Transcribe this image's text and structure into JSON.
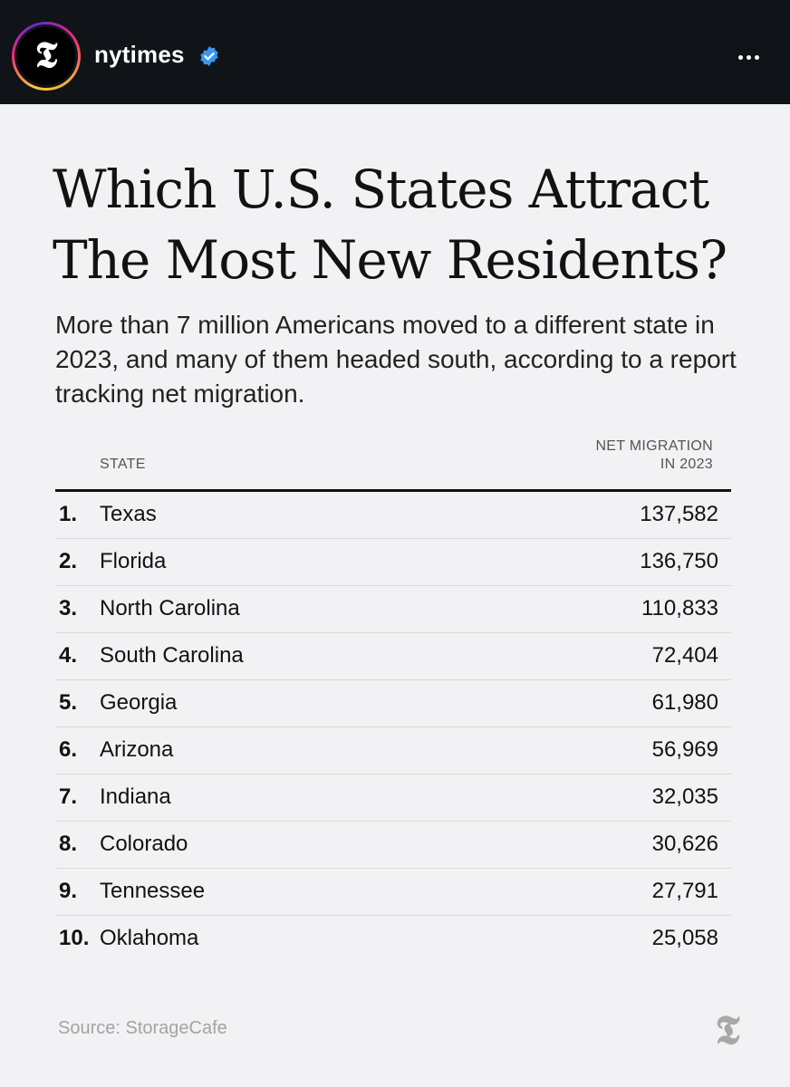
{
  "header": {
    "username": "nytimes",
    "avatar_glyph": "𝕿",
    "verified_icon": "verified-badge-icon",
    "more_icon": "more-options-icon"
  },
  "graphic": {
    "title_line1": "Which U.S. States Attract",
    "title_line2": "The Most New Residents?",
    "subtitle": "More than 7 million Americans moved to a different state in 2023, and many of them headed south, according to a report tracking net migration.",
    "col_state": "STATE",
    "col_net_line1": "NET MIGRATION",
    "col_net_line2": "IN 2023",
    "rows": [
      {
        "rank": "1.",
        "state": "Texas",
        "value": "137,582"
      },
      {
        "rank": "2.",
        "state": "Florida",
        "value": "136,750"
      },
      {
        "rank": "3.",
        "state": "North Carolina",
        "value": "110,833"
      },
      {
        "rank": "4.",
        "state": "South Carolina",
        "value": "72,404"
      },
      {
        "rank": "5.",
        "state": "Georgia",
        "value": "61,980"
      },
      {
        "rank": "6.",
        "state": "Arizona",
        "value": "56,969"
      },
      {
        "rank": "7.",
        "state": "Indiana",
        "value": "32,035"
      },
      {
        "rank": "8.",
        "state": "Colorado",
        "value": "30,626"
      },
      {
        "rank": "9.",
        "state": "Tennessee",
        "value": "27,791"
      },
      {
        "rank": "10.",
        "state": "Oklahoma",
        "value": "25,058"
      }
    ],
    "source": "Source: StorageCafe",
    "logo_glyph": "𝕿"
  },
  "colors": {
    "topbar": "#101418",
    "background": "#f2f2f4",
    "verified": "#3897f0",
    "source_text": "#a3a3a3"
  }
}
